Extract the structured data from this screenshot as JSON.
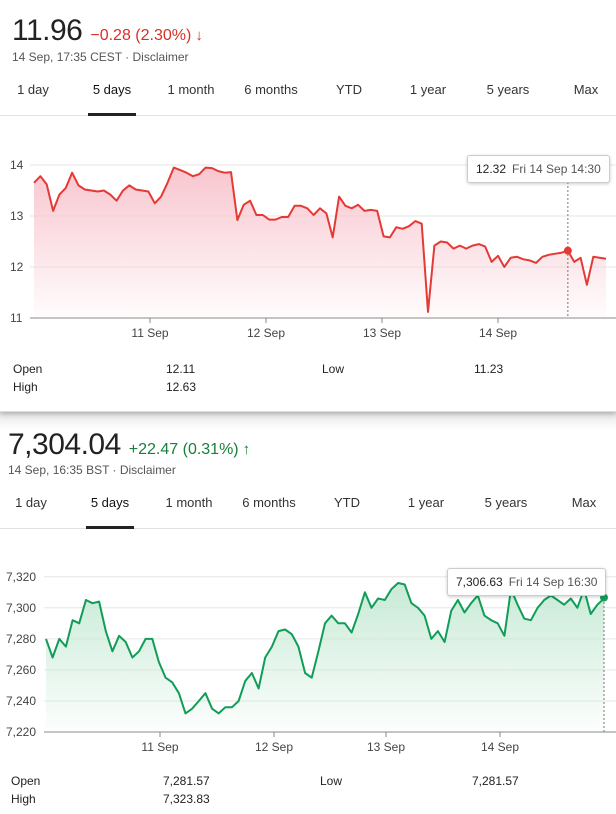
{
  "stock1": {
    "price": "11.96",
    "change": "−0.28 (2.30%)",
    "direction": "down",
    "color": "#d93025",
    "timestamp": "14 Sep, 17:35 CEST · Disclaimer",
    "tabs": [
      "1 day",
      "5 days",
      "1 month",
      "6 months",
      "YTD",
      "1 year",
      "5 years",
      "Max"
    ],
    "active_tab": "5 days",
    "tooltip": {
      "value": "12.32",
      "date": "Fri 14 Sep 14:30"
    },
    "stats": {
      "open_label": "Open",
      "open": "12.11",
      "high_label": "High",
      "high": "12.63",
      "low_label": "Low",
      "low": "11.23"
    }
  },
  "stock2": {
    "price": "7,304.04",
    "change": "+22.47 (0.31%)",
    "direction": "up",
    "color": "#188038",
    "timestamp": "14 Sep, 16:35 BST · Disclaimer",
    "tabs": [
      "1 day",
      "5 days",
      "1 month",
      "6 months",
      "YTD",
      "1 year",
      "5 years",
      "Max"
    ],
    "active_tab": "5 days",
    "tooltip": {
      "value": "7,306.63",
      "date": "Fri 14 Sep 16:30"
    },
    "stats": {
      "open_label": "Open",
      "open": "7,281.57",
      "high_label": "High",
      "high": "7,323.83",
      "low_label": "Low",
      "low": "7,281.57"
    }
  },
  "chart_data": [
    {
      "type": "area",
      "x_ticks": [
        "11 Sep",
        "12 Sep",
        "13 Sep",
        "14 Sep"
      ],
      "y_ticks": [
        "14",
        "13",
        "12",
        "11"
      ],
      "ylim": [
        11,
        14
      ],
      "grid": true,
      "color": "#e53935",
      "fill": "#f8c6cf",
      "marker_value": 12.32,
      "values": [
        13.65,
        13.78,
        13.62,
        13.1,
        13.42,
        13.55,
        13.85,
        13.6,
        13.52,
        13.5,
        13.48,
        13.5,
        13.42,
        13.3,
        13.5,
        13.6,
        13.52,
        13.5,
        13.48,
        13.25,
        13.38,
        13.65,
        13.95,
        13.9,
        13.85,
        13.78,
        13.82,
        13.95,
        13.94,
        13.88,
        13.85,
        13.86,
        12.92,
        13.22,
        13.3,
        13.02,
        13.02,
        12.93,
        12.93,
        12.98,
        12.98,
        13.2,
        13.2,
        13.15,
        13.02,
        13.15,
        13.05,
        12.58,
        13.38,
        13.2,
        13.15,
        13.22,
        13.1,
        13.12,
        13.1,
        12.6,
        12.58,
        12.78,
        12.75,
        12.8,
        12.9,
        12.85,
        11.12,
        12.42,
        12.5,
        12.48,
        12.36,
        12.42,
        12.36,
        12.42,
        12.45,
        12.4,
        12.1,
        12.22,
        12.0,
        12.18,
        12.2,
        12.15,
        12.13,
        12.08,
        12.2,
        12.24,
        12.26,
        12.28,
        12.32,
        12.1,
        12.18,
        11.65,
        12.2,
        12.18,
        12.16
      ]
    },
    {
      "type": "area",
      "x_ticks": [
        "11 Sep",
        "12 Sep",
        "13 Sep",
        "14 Sep"
      ],
      "y_ticks": [
        "7,320",
        "7,300",
        "7,280",
        "7,260",
        "7,240",
        "7,220"
      ],
      "ylim": [
        7220,
        7325
      ],
      "grid": true,
      "color": "#0f9d58",
      "fill": "#c8ead6",
      "marker_value": 7306.63,
      "values": [
        7280,
        7268,
        7280,
        7275,
        7292,
        7290,
        7305,
        7303,
        7304,
        7285,
        7272,
        7282,
        7278,
        7268,
        7272,
        7280,
        7280,
        7265,
        7255,
        7252,
        7245,
        7232,
        7235,
        7240,
        7245,
        7235,
        7232,
        7236,
        7236,
        7240,
        7253,
        7258,
        7248,
        7268,
        7275,
        7285,
        7286,
        7283,
        7275,
        7258,
        7255,
        7272,
        7290,
        7295,
        7290,
        7290,
        7284,
        7296,
        7310,
        7300,
        7306,
        7305,
        7312,
        7316,
        7315,
        7303,
        7300,
        7295,
        7280,
        7285,
        7278,
        7298,
        7305,
        7297,
        7303,
        7308,
        7295,
        7292,
        7290,
        7282,
        7312,
        7302,
        7293,
        7292,
        7300,
        7305,
        7308,
        7305,
        7302,
        7306,
        7300,
        7312,
        7296,
        7302,
        7306
      ]
    }
  ]
}
